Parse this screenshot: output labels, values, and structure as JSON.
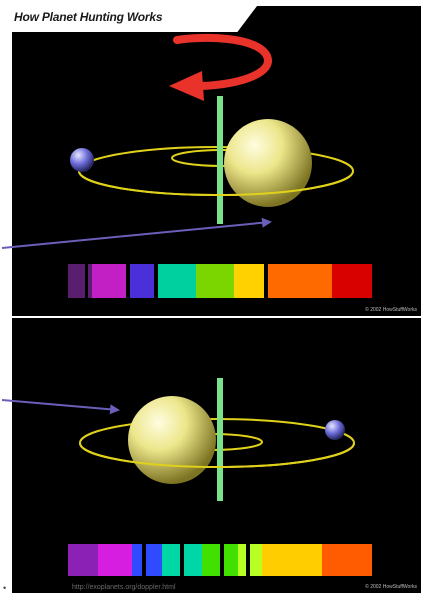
{
  "header": {
    "title": "How Planet Hunting Works"
  },
  "panels": [
    {
      "credit": "© 2002 HowStuffWorks",
      "star_shift": "right",
      "spectrum_colors": [
        "#5a1e6e",
        "#c21fc4",
        "#4b2fd8",
        "#00d0a0",
        "#7bd600",
        "#ffd100",
        "#ff6a00",
        "#d90000"
      ]
    },
    {
      "credit": "© 2002 HowStuffWorks",
      "star_shift": "left",
      "spectrum_colors": [
        "#8c22b5",
        "#d61ee0",
        "#2e4bff",
        "#00d7a6",
        "#41e000",
        "#b8ff24",
        "#ffcd00",
        "#ff5b00"
      ]
    }
  ],
  "footer": {
    "url": "http://exoplanets.org/doppler.html"
  },
  "colors": {
    "background": "#000000",
    "orbit": "#e0d21a",
    "star": "#f3ef8e",
    "rotation_arrow": "#e8322a",
    "pointer_arrow": "#6a5fb8",
    "axis": "#7ae28a"
  },
  "icons": {
    "rotation": "curved-rotation-arrow",
    "pointer": "pointer-arrow",
    "planet": "planet-sphere",
    "star": "star-sphere"
  }
}
